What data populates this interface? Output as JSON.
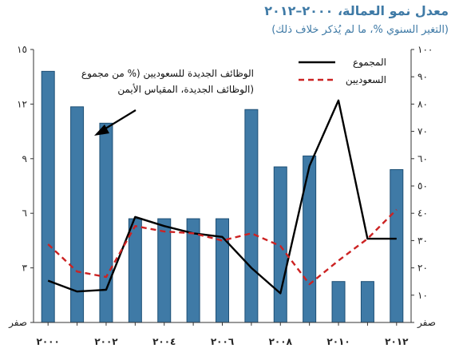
{
  "chart_data": {
    "type": "bar",
    "title": "معدل نمو العمالة، ٢٠٠٠–٢٠١٢",
    "subtitle": "(التغير السنوي %، ما لم يُذكر خلاف ذلك)",
    "x": [
      2000,
      2001,
      2002,
      2003,
      2004,
      2005,
      2006,
      2007,
      2008,
      2009,
      2010,
      2011,
      2012
    ],
    "x_ticks": [
      {
        "x": 2000,
        "label": "٢٠٠٠"
      },
      {
        "x": 2002,
        "label": "٢٠٠٢"
      },
      {
        "x": 2004,
        "label": "٢٠٠٤"
      },
      {
        "x": 2006,
        "label": "٢٠٠٦"
      },
      {
        "x": 2008,
        "label": "٢٠٠٨"
      },
      {
        "x": 2010,
        "label": "٢٠١٠"
      },
      {
        "x": 2012,
        "label": "٢٠١٢"
      }
    ],
    "left_axis": {
      "ylim": [
        0,
        15
      ],
      "ticks": [
        {
          "v": 0,
          "label": "صفر"
        },
        {
          "v": 3,
          "label": "٣"
        },
        {
          "v": 6,
          "label": "٦"
        },
        {
          "v": 9,
          "label": "٩"
        },
        {
          "v": 12,
          "label": "١٢"
        },
        {
          "v": 15,
          "label": "١٥"
        }
      ]
    },
    "right_axis": {
      "ylim": [
        0,
        100
      ],
      "ticks": [
        {
          "v": 0,
          "label": "صفر"
        },
        {
          "v": 10,
          "label": "١٠"
        },
        {
          "v": 20,
          "label": "٢٠"
        },
        {
          "v": 30,
          "label": "٣٠"
        },
        {
          "v": 40,
          "label": "٤٠"
        },
        {
          "v": 50,
          "label": "٥٠"
        },
        {
          "v": 60,
          "label": "٦٠"
        },
        {
          "v": 70,
          "label": "٧٠"
        },
        {
          "v": 80,
          "label": "٨٠"
        },
        {
          "v": 90,
          "label": "٩٠"
        },
        {
          "v": 100,
          "label": "١٠٠"
        }
      ]
    },
    "series": [
      {
        "name": "الوظائف الجديدة للسعوديين (% من مجموع الوظائف الجديدة، المقياس الأيمن)",
        "type": "bar",
        "axis": "right",
        "color": "#3f7aa6",
        "values": [
          92,
          79,
          73,
          38,
          38,
          38,
          38,
          78,
          57,
          61,
          15,
          15,
          56
        ]
      },
      {
        "name": "المجموع",
        "type": "line",
        "axis": "left",
        "color": "#000000",
        "values": [
          2.3,
          1.7,
          1.8,
          5.8,
          5.3,
          4.9,
          4.7,
          3.0,
          1.6,
          8.6,
          12.2,
          4.6,
          4.6
        ],
        "x_values": [
          2000,
          2001,
          2002,
          2003,
          2004,
          2005,
          2006,
          2007,
          2008,
          2009,
          2010,
          2011,
          2012
        ]
      },
      {
        "name": "السعوديين",
        "type": "line",
        "dashed": true,
        "axis": "left",
        "color": "#cc2222",
        "values": [
          4.3,
          2.8,
          2.5,
          5.3,
          5.0,
          4.9,
          4.5,
          4.9,
          4.2,
          2.1,
          3.4,
          4.6,
          6.2
        ],
        "x_values": [
          2000,
          2001,
          2002,
          2003,
          2004,
          2005,
          2006,
          2007,
          2008,
          2009,
          2010,
          2011,
          2012
        ]
      }
    ],
    "legend": [
      {
        "label": "المجموع",
        "series": 1
      },
      {
        "label": "السعوديين",
        "series": 2
      }
    ],
    "annotation": {
      "lines": [
        "الوظائف الجديدة للسعوديين (% من مجموع",
        "الوظائف الجديدة، المقياس الأيمن)"
      ],
      "points_to_series": 0
    },
    "legend_placement": "top-right",
    "grid": false
  }
}
